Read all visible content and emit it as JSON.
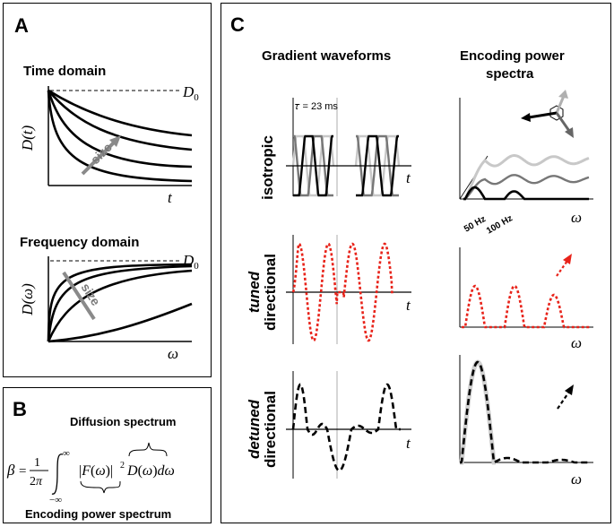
{
  "panel_a": {
    "letter": "A",
    "time_title": "Time domain",
    "time_ylabel": "D(t)",
    "time_xlabel": "t",
    "d0": "D",
    "d0_sub": "0",
    "size_label": "size",
    "freq_title": "Frequency domain",
    "freq_ylabel": "D(ω)",
    "freq_xlabel": "ω"
  },
  "panel_b": {
    "letter": "B",
    "diffusion_label": "Diffusion spectrum",
    "encoding_label": "Encoding power spectrum"
  },
  "panel_c": {
    "letter": "C",
    "col1_title": "Gradient waveforms",
    "col2_title_1": "Encoding power",
    "col2_title_2": "spectra",
    "tau_label": "𝜏 = 23 ms",
    "t_label": "t",
    "omega_label": "ω",
    "hz50": "50 Hz",
    "hz100": "100 Hz",
    "row1_label": "isotropic",
    "row2_label_em": "tuned",
    "row2_label": "directional",
    "row3_label_em": "detuned",
    "row3_label": "directional"
  },
  "colors": {
    "tuned": "#e8231a",
    "grey_light": "#c8c8c8",
    "grey_mid": "#777777"
  }
}
